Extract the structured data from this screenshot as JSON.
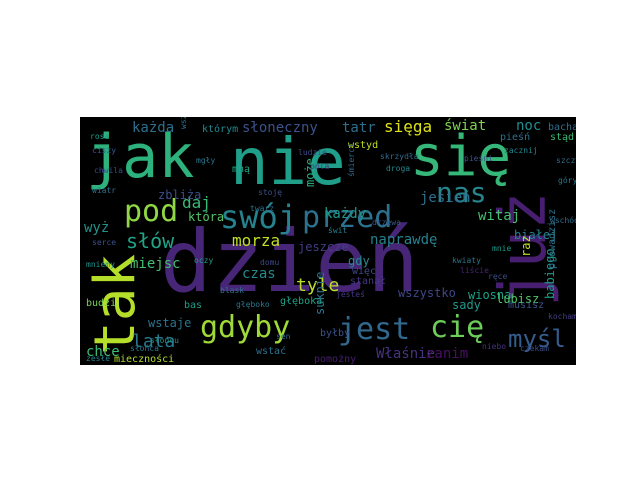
{
  "wordcloud": {
    "words": [
      {
        "text": "jak",
        "color": "#2db27d"
      },
      {
        "text": "nie",
        "color": "#1f9e89"
      },
      {
        "text": "się",
        "color": "#35b779"
      },
      {
        "text": "dzień",
        "color": "#482677"
      },
      {
        "text": "tak",
        "color": "#b5de2b"
      },
      {
        "text": "już",
        "color": "#481f70"
      },
      {
        "text": "pod",
        "color": "#8fd744"
      },
      {
        "text": "swój",
        "color": "#26828e"
      },
      {
        "text": "przed",
        "color": "#2c728e"
      },
      {
        "text": "nas",
        "color": "#25848e"
      },
      {
        "text": "gdyby",
        "color": "#a0da39"
      },
      {
        "text": "jest",
        "color": "#31688e"
      },
      {
        "text": "cię",
        "color": "#6ccd5a"
      },
      {
        "text": "myśl",
        "color": "#365c8d"
      },
      {
        "text": "słów",
        "color": "#20a386"
      },
      {
        "text": "lata",
        "color": "#2a788e"
      },
      {
        "text": "każda",
        "color": "#2d708e"
      },
      {
        "text": "słoneczny",
        "color": "#3b528b"
      },
      {
        "text": "tatr",
        "color": "#2e6f8e"
      },
      {
        "text": "sięga",
        "color": "#dde318"
      },
      {
        "text": "świat",
        "color": "#7fd34e"
      },
      {
        "text": "noc",
        "color": "#228d8d"
      },
      {
        "text": "morza",
        "color": "#c0df25"
      },
      {
        "text": "tyle",
        "color": "#b8de29"
      },
      {
        "text": "daj",
        "color": "#3aba76"
      },
      {
        "text": "każdy",
        "color": "#1f968b"
      },
      {
        "text": "naprawdę",
        "color": "#26818e"
      },
      {
        "text": "miejsc",
        "color": "#42be71"
      },
      {
        "text": "czas",
        "color": "#238a8d"
      },
      {
        "text": "wyż",
        "color": "#20928c"
      },
      {
        "text": "witaj",
        "color": "#44bf70"
      },
      {
        "text": "jesień",
        "color": "#2e6e8e"
      },
      {
        "text": "białej",
        "color": "#27808e"
      },
      {
        "text": "babiego",
        "color": "#1e9b8a"
      },
      {
        "text": "zbliża",
        "color": "#3c4f8a"
      },
      {
        "text": "która",
        "color": "#55c667"
      },
      {
        "text": "wiosną",
        "color": "#1fa188"
      },
      {
        "text": "lubisz",
        "color": "#52c569"
      },
      {
        "text": "sady",
        "color": "#1f9a8a"
      },
      {
        "text": "wszystko",
        "color": "#3f4788"
      },
      {
        "text": "wstaje",
        "color": "#2b748e"
      },
      {
        "text": "chce",
        "color": "#3dbc74"
      },
      {
        "text": "stanął",
        "color": "#453781"
      },
      {
        "text": "Właśnie",
        "color": "#46327e"
      },
      {
        "text": "zanim",
        "color": "#471063"
      },
      {
        "text": "może",
        "color": "#29af7f"
      },
      {
        "text": "jeszcze",
        "color": "#433e85"
      },
      {
        "text": "gdy",
        "color": "#228c8d"
      },
      {
        "text": "więc",
        "color": "#3f4889"
      },
      {
        "text": "raz",
        "color": "#bddf26"
      },
      {
        "text": "prowadzisz",
        "color": "#2c718e"
      },
      {
        "text": "słońcu",
        "color": "#1f948c"
      },
      {
        "text": "musisz",
        "color": "#3b528b"
      },
      {
        "text": "suknie",
        "color": "#2a768e"
      },
      {
        "text": "byłby",
        "color": "#3b528b"
      },
      {
        "text": "wstać",
        "color": "#2c728e"
      },
      {
        "text": "mieczności",
        "color": "#b0dd2f"
      },
      {
        "text": "pomożny",
        "color": "#481f70"
      },
      {
        "text": "głęboka",
        "color": "#1fa187"
      },
      {
        "text": "budzi",
        "color": "#77d153"
      },
      {
        "text": "bas",
        "color": "#1f9f88"
      },
      {
        "text": "słońca",
        "color": "#2a788e"
      },
      {
        "text": "wstyd",
        "color": "#c2df23"
      },
      {
        "text": "którym",
        "color": "#23898e"
      },
      {
        "text": "bacha",
        "color": "#2e6e8e"
      },
      {
        "text": "stąd",
        "color": "#3aba76"
      },
      {
        "text": "pieśń",
        "color": "#2c718e"
      },
      {
        "text": "mną",
        "color": "#22a785"
      },
      {
        "text": "wszyscy",
        "color": "#2c728e"
      },
      {
        "text": "mniemy",
        "color": "#20928c"
      },
      {
        "text": "zesłe",
        "color": "#26828e"
      },
      {
        "text": "zacznij",
        "color": "#24868e"
      },
      {
        "text": "śmierci",
        "color": "#31688e"
      },
      {
        "text": "mnie",
        "color": "#1f988b"
      },
      {
        "text": "stoję",
        "color": "#3b528b"
      },
      {
        "text": "głęboko",
        "color": "#2a778e"
      },
      {
        "text": "jesteś",
        "color": "#443983"
      },
      {
        "text": "ciszy",
        "color": "#38598c"
      },
      {
        "text": "chwila",
        "color": "#3e4989"
      },
      {
        "text": "wiatr",
        "color": "#2d708e"
      },
      {
        "text": "serce",
        "color": "#3b528b"
      },
      {
        "text": "rosa",
        "color": "#1e9c89"
      },
      {
        "text": "mgły",
        "color": "#2a768e"
      },
      {
        "text": "ludzie",
        "color": "#3e4a89"
      },
      {
        "text": "pola",
        "color": "#453882"
      },
      {
        "text": "skrzydła",
        "color": "#2f6c8e"
      },
      {
        "text": "droga",
        "color": "#24878e"
      },
      {
        "text": "pieśni",
        "color": "#3a548c"
      },
      {
        "text": "szczyt",
        "color": "#2f6b8e"
      },
      {
        "text": "góry",
        "color": "#29798e"
      },
      {
        "text": "wschód",
        "color": "#2e6f8e"
      },
      {
        "text": "kocham",
        "color": "#433d84"
      },
      {
        "text": "czekam",
        "color": "#3c4f8a"
      },
      {
        "text": "oczy",
        "color": "#1f9a8a"
      },
      {
        "text": "twarz",
        "color": "#2b758e"
      },
      {
        "text": "domu",
        "color": "#3e4989"
      },
      {
        "text": "drzewa",
        "color": "#39568c"
      },
      {
        "text": "kwiaty",
        "color": "#2a768e"
      },
      {
        "text": "liście",
        "color": "#482475"
      },
      {
        "text": "ręce",
        "color": "#3d4d8a"
      },
      {
        "text": "niebo",
        "color": "#46337f"
      },
      {
        "text": "sen",
        "color": "#30698e"
      },
      {
        "text": "blask",
        "color": "#2b748e"
      },
      {
        "text": "świt",
        "color": "#277f8e"
      }
    ]
  }
}
